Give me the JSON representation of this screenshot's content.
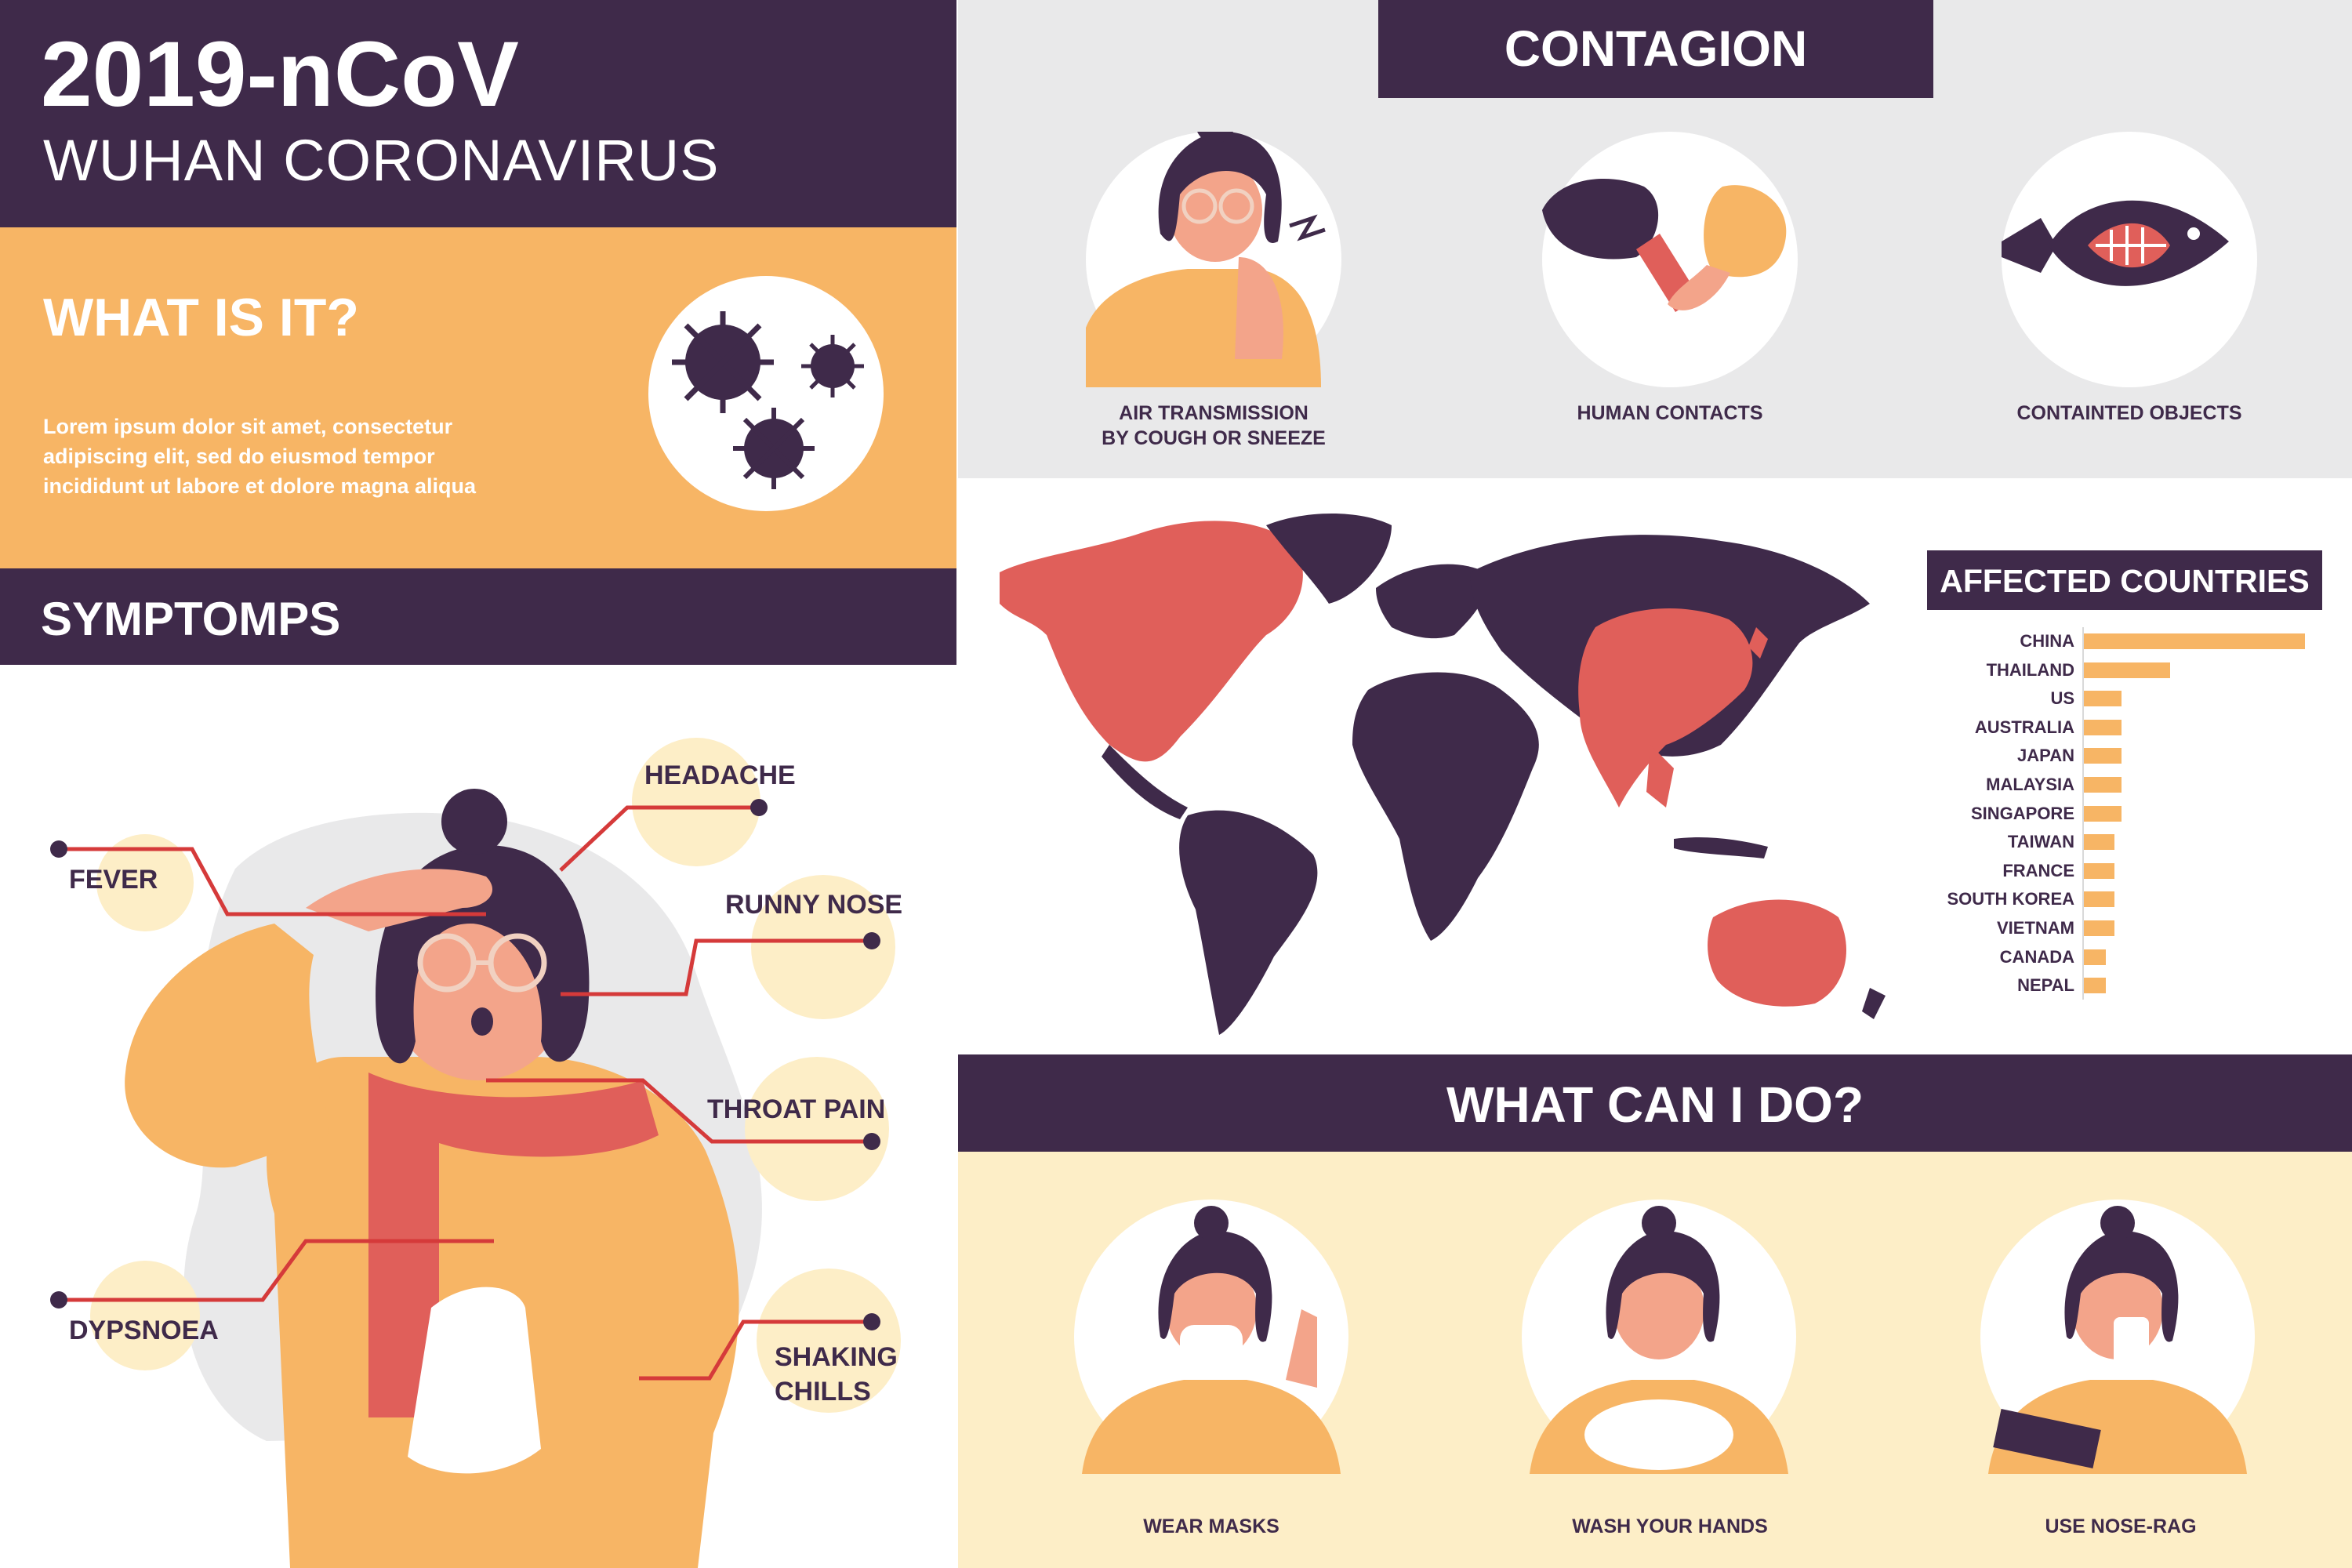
{
  "header": {
    "title": "2019-nCoV",
    "subtitle": "WUHAN CORONAVIRUS"
  },
  "what_is_it": {
    "heading": "WHAT IS IT?",
    "body_lines": [
      "Lorem ipsum dolor sit amet, consectetur",
      "adipiscing elit, sed do eiusmod tempor",
      "incididunt ut labore et dolore magna aliqua"
    ]
  },
  "symptoms": {
    "heading": "SYMPTOMPS",
    "items": [
      {
        "label": "FEVER"
      },
      {
        "label": "HEADACHE"
      },
      {
        "label": "RUNNY NOSE"
      },
      {
        "label": "THROAT PAIN"
      },
      {
        "label": "DYPSNOEA"
      },
      {
        "label_line1": "SHAKING",
        "label_line2": "CHILLS"
      }
    ]
  },
  "contagion": {
    "heading": "CONTAGION",
    "items": [
      {
        "line1": "AIR TRANSMISSION",
        "line2": "BY COUGH OR SNEEZE"
      },
      {
        "line1": "HUMAN CONTACTS"
      },
      {
        "line1": "CONTAINTED OBJECTS"
      }
    ]
  },
  "affected": {
    "heading": "AFFECTED COUNTRIES"
  },
  "chart_data": {
    "type": "bar",
    "title": "AFFECTED COUNTRIES",
    "orientation": "horizontal",
    "categories": [
      "CHINA",
      "THAILAND",
      "US",
      "AUSTRALIA",
      "JAPAN",
      "MALAYSIA",
      "SINGAPORE",
      "TAIWAN",
      "FRANCE",
      "SOUTH KOREA",
      "VIETNAM",
      "CANADA",
      "NEPAL"
    ],
    "values": [
      100,
      39,
      17,
      17,
      17,
      17,
      17,
      14,
      14,
      14,
      14,
      10,
      10
    ],
    "color": "#f7b565"
  },
  "what_can_i_do": {
    "heading": "WHAT CAN I DO?",
    "items": [
      {
        "label": "WEAR MASKS"
      },
      {
        "label": "WASH YOUR HANDS"
      },
      {
        "label": "USE NOSE-RAG"
      }
    ]
  },
  "colors": {
    "purple": "#3f2a4a",
    "yellow": "#f7b565",
    "red": "#e05f5a",
    "cream": "#fdeec7",
    "grey": "#e9e9ea"
  }
}
